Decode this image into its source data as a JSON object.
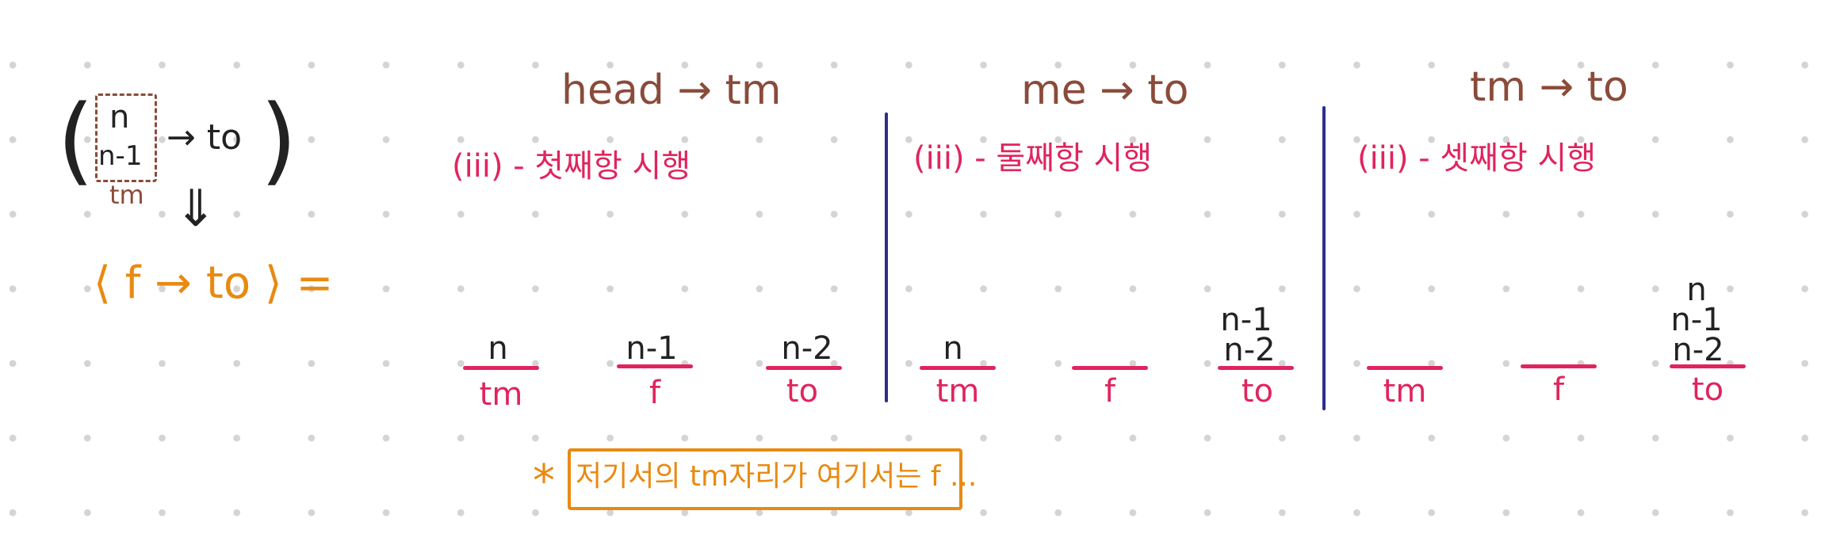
{
  "left": {
    "top_label": "n",
    "second_label": "n-1",
    "arrow_target": "→ to",
    "box_label": "tm",
    "down_arrow": "⇓",
    "equation": "⟨ f → to ⟩ ="
  },
  "sections": [
    {
      "title": "head → tm",
      "step": "(iii) - 첫째항 시행",
      "pegs": [
        {
          "stack": [
            "n"
          ],
          "label": "tm"
        },
        {
          "stack": [
            "n-1"
          ],
          "label": "f"
        },
        {
          "stack": [
            "n-2"
          ],
          "label": "to"
        }
      ]
    },
    {
      "title": "me → to",
      "step": "(iii) - 둘째항 시행",
      "pegs": [
        {
          "stack": [
            "n"
          ],
          "label": "tm"
        },
        {
          "stack": [],
          "label": "f"
        },
        {
          "stack": [
            "n-1",
            "n-2"
          ],
          "label": "to"
        }
      ]
    },
    {
      "title": "tm → to",
      "step": "(iii) - 셋째항 시행",
      "pegs": [
        {
          "stack": [],
          "label": "tm"
        },
        {
          "stack": [],
          "label": "f"
        },
        {
          "stack": [
            "n",
            "n-1",
            "n-2"
          ],
          "label": "to"
        }
      ]
    }
  ],
  "note": {
    "star": "*",
    "text": "저기서의 tm자리가 여기서는 f ..."
  },
  "colors": {
    "title": "#8a4b3a",
    "pink": "#e0245e",
    "orange": "#e88a12",
    "divider": "#2e2e8a"
  }
}
